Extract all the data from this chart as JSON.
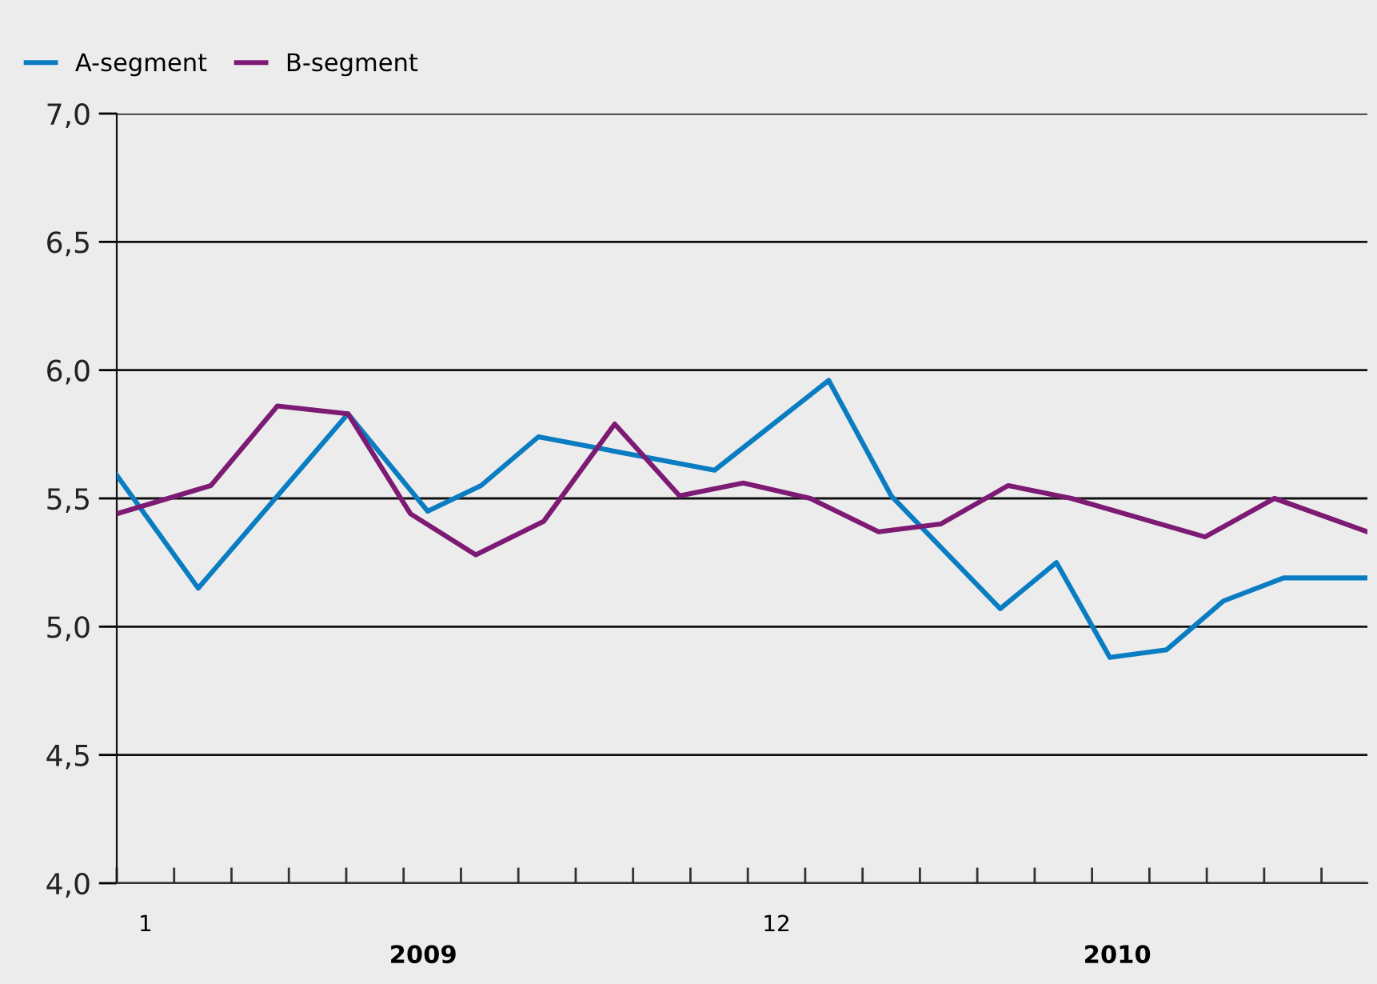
{
  "chart_data": {
    "type": "line",
    "xlim": [
      0.5,
      22.3
    ],
    "xticks": [
      {
        "value": 1,
        "label": "1"
      },
      {
        "value": 12,
        "label": "12"
      },
      {
        "value": 0.5,
        "label": null
      },
      {
        "value": 1.5,
        "label": null
      },
      {
        "value": 2.5,
        "label": null
      },
      {
        "value": 3.5,
        "label": null
      },
      {
        "value": 4.5,
        "label": null
      },
      {
        "value": 5.5,
        "label": null
      },
      {
        "value": 6.5,
        "label": null
      },
      {
        "value": 7.5,
        "label": null
      },
      {
        "value": 8.5,
        "label": null
      },
      {
        "value": 9.5,
        "label": null
      },
      {
        "value": 10.5,
        "label": null
      },
      {
        "value": 11.5,
        "label": null
      },
      {
        "value": 12.5,
        "label": null
      },
      {
        "value": 13.5,
        "label": null
      },
      {
        "value": 14.5,
        "label": null
      },
      {
        "value": 15.5,
        "label": null
      },
      {
        "value": 16.5,
        "label": null
      },
      {
        "value": 17.5,
        "label": null
      },
      {
        "value": 18.5,
        "label": null
      },
      {
        "value": 19.5,
        "label": null
      },
      {
        "value": 20.5,
        "label": null
      },
      {
        "value": 21.5,
        "label": null
      }
    ],
    "ylim": [
      4.0,
      7.0
    ],
    "yticks": [
      {
        "value": 4.0,
        "label": "4,0"
      },
      {
        "value": 4.5,
        "label": "4,5"
      },
      {
        "value": 5.0,
        "label": "5,0"
      },
      {
        "value": 5.5,
        "label": "5,5"
      },
      {
        "value": 6.0,
        "label": "6,0"
      },
      {
        "value": 6.5,
        "label": "6,5"
      },
      {
        "value": 7.0,
        "label": "7,0"
      }
    ],
    "grid": "y",
    "legend": "top left",
    "marker": "none",
    "line_style": "solid",
    "annotations": [
      "2009",
      "2010"
    ],
    "series": [
      {
        "name": "A-segment",
        "color": "#0a7dc2",
        "x": [
          0.5,
          1.92,
          4.53,
          5.92,
          6.85,
          7.85,
          10.92,
          12.91,
          14.0,
          15.9,
          16.88,
          17.81,
          18.8,
          19.79,
          20.84,
          22.3
        ],
        "values": [
          5.59,
          5.15,
          5.83,
          5.45,
          5.55,
          5.74,
          5.61,
          5.96,
          5.51,
          5.07,
          5.25,
          4.88,
          4.91,
          5.1,
          5.19,
          5.19
        ]
      },
      {
        "name": "B-segment",
        "color": "#7d1a73",
        "x": [
          0.5,
          2.14,
          3.3,
          4.53,
          5.62,
          6.76,
          7.94,
          9.18,
          10.31,
          11.42,
          12.59,
          13.78,
          14.86,
          16.04,
          17.14,
          19.47,
          20.68,
          22.3
        ],
        "values": [
          5.44,
          5.55,
          5.86,
          5.83,
          5.44,
          5.28,
          5.41,
          5.79,
          5.51,
          5.56,
          5.5,
          5.37,
          5.4,
          5.55,
          5.5,
          5.35,
          5.5,
          5.37
        ]
      }
    ]
  }
}
